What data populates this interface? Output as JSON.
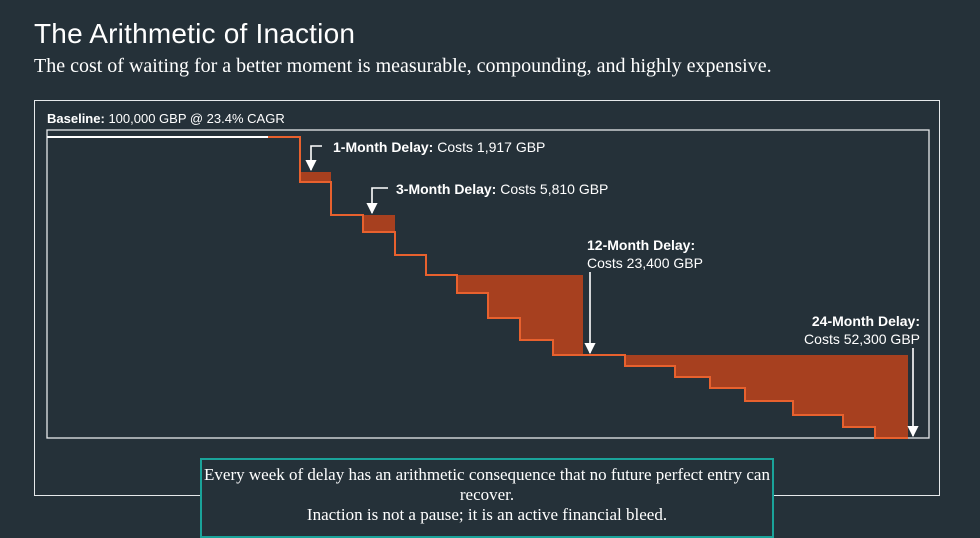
{
  "header": {
    "title": "The Arithmetic of Inaction",
    "subtitle": "The cost of waiting for a better moment is measurable, compounding, and highly expensive."
  },
  "baseline": {
    "label": "Baseline:",
    "text": "100,000 GBP @ 23.4% CAGR"
  },
  "colors": {
    "background": "#253139",
    "line": "#e8612e",
    "area": "#a7401f",
    "frame": "#e6e9eb",
    "callout_border": "#1aa39a"
  },
  "chart_data": {
    "type": "area",
    "title": "",
    "xlabel": "",
    "ylabel": "",
    "grid": false,
    "annotations": [
      {
        "label": "1-Month Delay:",
        "text": "Costs 1,917 GBP",
        "delay_months": 1,
        "cost_gbp": 1917
      },
      {
        "label": "3-Month Delay:",
        "text": "Costs 5,810 GBP",
        "delay_months": 3,
        "cost_gbp": 5810
      },
      {
        "label": "12-Month Delay:",
        "text": "Costs 23,400 GBP",
        "delay_months": 12,
        "cost_gbp": 23400
      },
      {
        "label": "24-Month Delay:",
        "text": "Costs 52,300 GBP",
        "delay_months": 24,
        "cost_gbp": 52300
      }
    ]
  },
  "callout": {
    "line1": "Every week of delay has an arithmetic consequence that no future perfect entry can recover.",
    "line2": "Inaction is not a pause; it is an active financial bleed."
  }
}
